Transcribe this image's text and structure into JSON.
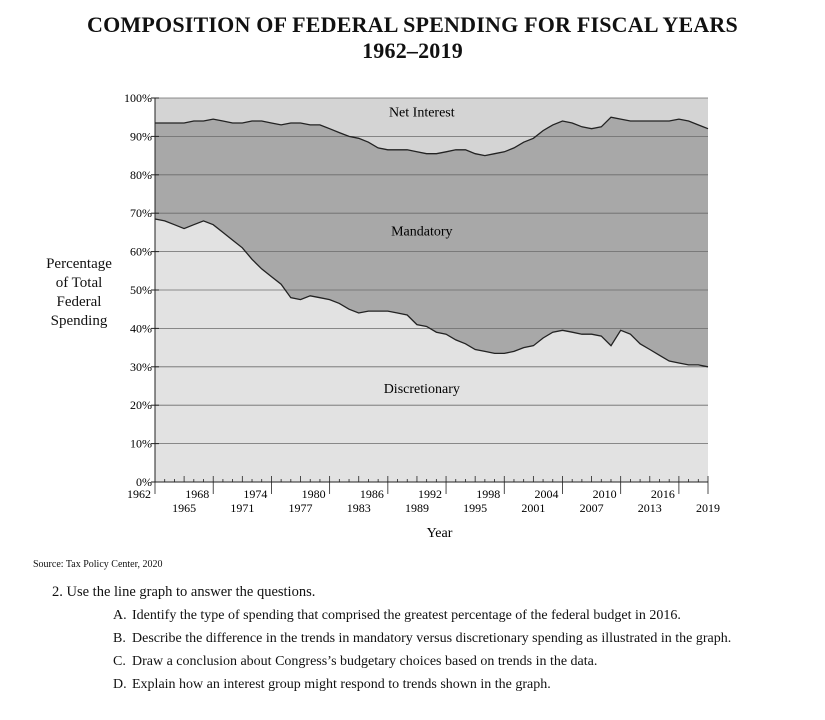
{
  "page": {
    "title_line1": "COMPOSITION OF FEDERAL SPENDING FOR FISCAL YEARS",
    "title_line2": "1962–2019",
    "source": "Source: Tax Policy Center, 2020",
    "question_stem": "2.  Use the line graph to answer the questions.",
    "questions": [
      {
        "letter": "A.",
        "text": "Identify the type of spending that comprised the greatest percentage of the federal budget in 2016."
      },
      {
        "letter": "B.",
        "text": "Describe the difference in the trends in mandatory versus discretionary spending as illustrated in the graph."
      },
      {
        "letter": "C.",
        "text": "Draw a conclusion about Congress’s budgetary choices based on trends in the data."
      },
      {
        "letter": "D.",
        "text": "Explain how an interest group might respond to trends shown in the graph."
      }
    ]
  },
  "chart_data": {
    "type": "area",
    "title": "COMPOSITION OF FEDERAL SPENDING FOR FISCAL YEARS 1962–2019",
    "xlabel": "Year",
    "ylabel_lines": [
      "Percentage",
      "of Total",
      "Federal",
      "Spending"
    ],
    "xlim": [
      1962,
      2019
    ],
    "ylim": [
      0,
      100
    ],
    "grid": true,
    "yticks": [
      0,
      10,
      20,
      30,
      40,
      50,
      60,
      70,
      80,
      90,
      100
    ],
    "ytick_labels": [
      "0%",
      "10%",
      "20%",
      "30%",
      "40%",
      "50%",
      "60%",
      "70%",
      "80%",
      "90%",
      "100%"
    ],
    "xticks_top_row": [
      1962,
      1968,
      1974,
      1980,
      1986,
      1992,
      1998,
      2004,
      2010,
      2016
    ],
    "xticks_bottom_row": [
      1965,
      1971,
      1977,
      1983,
      1989,
      1995,
      2001,
      2007,
      2013,
      2019
    ],
    "colors": {
      "discretionary": "#e2e2e2",
      "mandatory": "#a8a8a8",
      "net_interest": "#d4d4d4",
      "line": "#222222"
    },
    "years": [
      1962,
      1963,
      1964,
      1965,
      1966,
      1967,
      1968,
      1969,
      1970,
      1971,
      1972,
      1973,
      1974,
      1975,
      1976,
      1977,
      1978,
      1979,
      1980,
      1981,
      1982,
      1983,
      1984,
      1985,
      1986,
      1987,
      1988,
      1989,
      1990,
      1991,
      1992,
      1993,
      1994,
      1995,
      1996,
      1997,
      1998,
      1999,
      2000,
      2001,
      2002,
      2003,
      2004,
      2005,
      2006,
      2007,
      2008,
      2009,
      2010,
      2011,
      2012,
      2013,
      2014,
      2015,
      2016,
      2017,
      2018,
      2019
    ],
    "series": [
      {
        "name": "Discretionary",
        "cumulative_top": [
          68.5,
          68.0,
          67.0,
          66.0,
          67.0,
          68.0,
          67.0,
          65.0,
          63.0,
          61.0,
          58.0,
          55.5,
          53.5,
          51.5,
          48.0,
          47.5,
          48.5,
          48.0,
          47.5,
          46.5,
          45.0,
          44.0,
          44.5,
          44.5,
          44.5,
          44.0,
          43.5,
          41.0,
          40.5,
          39.0,
          38.5,
          37.0,
          36.0,
          34.5,
          34.0,
          33.5,
          33.5,
          34.0,
          35.0,
          35.5,
          37.5,
          39.0,
          39.5,
          39.0,
          38.5,
          38.5,
          38.0,
          35.5,
          39.5,
          38.5,
          36.0,
          34.5,
          33.0,
          31.5,
          31.0,
          30.5,
          30.5,
          30.0
        ],
        "values": [
          68.5,
          68.0,
          67.0,
          66.0,
          67.0,
          68.0,
          67.0,
          65.0,
          63.0,
          61.0,
          58.0,
          55.5,
          53.5,
          51.5,
          48.0,
          47.5,
          48.5,
          48.0,
          47.5,
          46.5,
          45.0,
          44.0,
          44.5,
          44.5,
          44.5,
          44.0,
          43.5,
          41.0,
          40.5,
          39.0,
          38.5,
          37.0,
          36.0,
          34.5,
          34.0,
          33.5,
          33.5,
          34.0,
          35.0,
          35.5,
          37.5,
          39.0,
          39.5,
          39.0,
          38.5,
          38.5,
          38.0,
          35.5,
          39.5,
          38.5,
          36.0,
          34.5,
          33.0,
          31.5,
          31.0,
          30.5,
          30.5,
          30.0
        ]
      },
      {
        "name": "Mandatory",
        "cumulative_top": [
          93.5,
          93.5,
          93.5,
          93.5,
          94.0,
          94.0,
          94.5,
          94.0,
          93.5,
          93.5,
          94.0,
          94.0,
          93.5,
          93.0,
          93.5,
          93.5,
          93.0,
          93.0,
          92.0,
          91.0,
          90.0,
          89.5,
          88.5,
          87.0,
          86.5,
          86.5,
          86.5,
          86.0,
          85.5,
          85.5,
          86.0,
          86.5,
          86.5,
          85.5,
          85.0,
          85.5,
          86.0,
          87.0,
          88.5,
          89.5,
          91.5,
          93.0,
          94.0,
          93.5,
          92.5,
          92.0,
          92.5,
          95.0,
          94.5,
          94.0,
          94.0,
          94.0,
          94.0,
          94.0,
          94.5,
          94.0,
          93.0,
          92.0
        ],
        "values": [
          25.0,
          25.5,
          26.5,
          27.5,
          27.0,
          26.0,
          27.5,
          29.0,
          30.5,
          32.5,
          36.0,
          38.5,
          40.0,
          41.5,
          45.5,
          46.0,
          44.5,
          45.0,
          44.5,
          44.5,
          45.0,
          45.5,
          44.0,
          42.5,
          42.0,
          42.5,
          43.0,
          45.0,
          45.0,
          46.5,
          47.5,
          49.5,
          50.5,
          51.0,
          51.0,
          52.0,
          52.5,
          53.0,
          53.5,
          54.0,
          54.0,
          54.0,
          54.5,
          54.5,
          54.0,
          53.5,
          54.5,
          59.5,
          55.0,
          55.5,
          58.0,
          59.5,
          61.0,
          62.5,
          63.5,
          63.5,
          62.5,
          62.0
        ]
      },
      {
        "name": "Net Interest",
        "cumulative_top": [
          100,
          100,
          100,
          100,
          100,
          100,
          100,
          100,
          100,
          100,
          100,
          100,
          100,
          100,
          100,
          100,
          100,
          100,
          100,
          100,
          100,
          100,
          100,
          100,
          100,
          100,
          100,
          100,
          100,
          100,
          100,
          100,
          100,
          100,
          100,
          100,
          100,
          100,
          100,
          100,
          100,
          100,
          100,
          100,
          100,
          100,
          100,
          100,
          100,
          100,
          100,
          100,
          100,
          100,
          100,
          100,
          100,
          100
        ],
        "values": [
          6.5,
          6.5,
          6.5,
          6.5,
          6.0,
          6.0,
          5.5,
          6.0,
          6.5,
          6.5,
          6.0,
          6.0,
          6.5,
          7.0,
          6.5,
          6.5,
          7.0,
          7.0,
          8.0,
          9.0,
          10.0,
          10.5,
          11.5,
          13.0,
          13.5,
          13.5,
          13.5,
          14.0,
          14.5,
          14.5,
          14.0,
          13.5,
          13.5,
          14.5,
          15.0,
          14.5,
          14.0,
          13.0,
          11.5,
          10.5,
          8.5,
          7.0,
          6.0,
          6.5,
          7.5,
          8.0,
          7.5,
          5.0,
          5.5,
          6.0,
          6.0,
          6.0,
          6.0,
          6.0,
          5.5,
          6.0,
          7.0,
          8.0
        ]
      }
    ],
    "annotations": [
      {
        "text": "Net Interest",
        "x": 1989.5,
        "y": 96.5
      },
      {
        "text": "Mandatory",
        "x": 1989.5,
        "y": 65.5
      },
      {
        "text": "Discretionary",
        "x": 1989.5,
        "y": 24.5
      }
    ]
  }
}
